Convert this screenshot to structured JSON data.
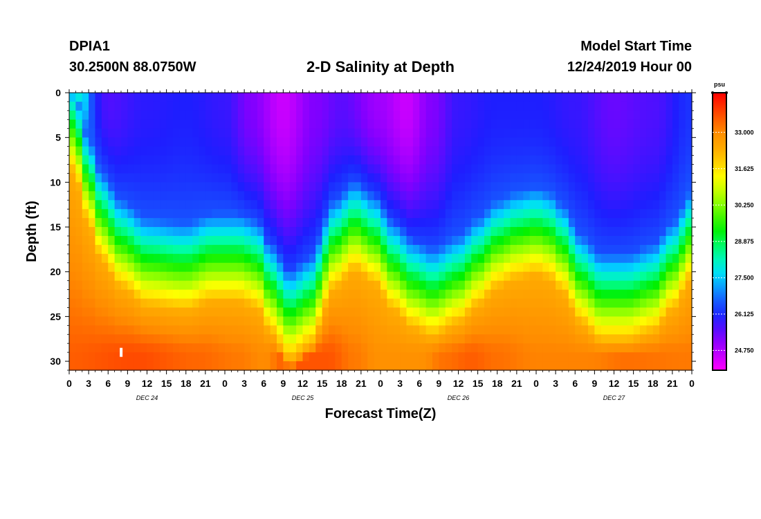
{
  "header": {
    "station": "DPIA1",
    "coords": "30.2500N 88.0750W",
    "title": "2-D Salinity at Depth",
    "model_start_label": "Model Start Time",
    "model_start_value": "12/24/2019 Hour 00"
  },
  "chart_data": {
    "type": "heatmap",
    "title": "2-D Salinity at Depth",
    "xlabel": "Forecast Time(Z)",
    "ylabel": "Depth (ft)",
    "x_tick_labels": [
      "0",
      "3",
      "6",
      "9",
      "12",
      "15",
      "18",
      "21",
      "0",
      "3",
      "6",
      "9",
      "12",
      "15",
      "18",
      "21",
      "0",
      "3",
      "6",
      "9",
      "12",
      "15",
      "18",
      "21",
      "0",
      "3",
      "6",
      "9",
      "12",
      "15",
      "18",
      "21",
      "0"
    ],
    "x_hours": [
      0,
      3,
      6,
      9,
      12,
      15,
      18,
      21,
      24,
      27,
      30,
      33,
      36,
      39,
      42,
      45,
      48,
      51,
      54,
      57,
      60,
      63,
      66,
      69,
      72,
      75,
      78,
      81,
      84,
      87,
      90,
      93,
      96
    ],
    "xlim_hours": [
      0,
      96
    ],
    "day_labels": [
      {
        "label": "DEC 24",
        "hour": 12
      },
      {
        "label": "DEC 25",
        "hour": 36
      },
      {
        "label": "DEC 26",
        "hour": 60
      },
      {
        "label": "DEC 27",
        "hour": 84
      }
    ],
    "y_ticks": [
      0,
      5,
      10,
      15,
      20,
      25,
      30
    ],
    "ylim": [
      0,
      31
    ],
    "y_inverted": true,
    "colorbar": {
      "unit": "psu",
      "min": 24.0,
      "max": 34.5,
      "tick_values": [
        33.0,
        31.625,
        30.25,
        28.875,
        27.5,
        26.125,
        24.75
      ],
      "tick_labels": [
        "33.000",
        "31.625",
        "30.250",
        "28.875",
        "27.500",
        "26.125",
        "24.750"
      ]
    },
    "halocline_depth_ft": {
      "hours": [
        0,
        1,
        3,
        5,
        8,
        12,
        18,
        22,
        26,
        29,
        31,
        34,
        37,
        41,
        44,
        47,
        50,
        53,
        56,
        60,
        63,
        66,
        69,
        72,
        74,
        76,
        79,
        82,
        86,
        90,
        93,
        96
      ],
      "depths": [
        1,
        3,
        8,
        12,
        15,
        17,
        17.5,
        16.5,
        16.5,
        17.3,
        20,
        23,
        21.5,
        15,
        13,
        14.5,
        17.5,
        19.5,
        20.5,
        19,
        17,
        15,
        14,
        13.5,
        14,
        15.5,
        19,
        21,
        21,
        20,
        17.5,
        14
      ]
    },
    "surface_salinity_psu": {
      "hours": [
        0,
        2,
        3,
        4,
        6,
        12,
        18,
        24,
        28,
        33,
        38,
        42,
        48,
        52,
        56,
        60,
        66,
        72,
        78,
        84,
        90,
        96
      ],
      "values": [
        29.0,
        28.0,
        27.0,
        26.0,
        25.6,
        25.9,
        26.0,
        25.8,
        25.2,
        24.5,
        25.2,
        25.5,
        24.9,
        24.5,
        25.2,
        25.8,
        26.0,
        26.0,
        25.8,
        25.4,
        25.6,
        26.2
      ]
    },
    "bottom_salinity_psu": {
      "hours": [
        0,
        10,
        20,
        26,
        30,
        34,
        40,
        44,
        48,
        54,
        58,
        62,
        66,
        72,
        80,
        86,
        96
      ],
      "values": [
        33.5,
        33.7,
        33.4,
        33.2,
        33.0,
        33.6,
        33.6,
        33.2,
        32.9,
        32.9,
        33.3,
        33.5,
        33.3,
        33.1,
        33.1,
        33.3,
        33.2
      ]
    },
    "grid": false,
    "legend": "colorbar-right"
  }
}
